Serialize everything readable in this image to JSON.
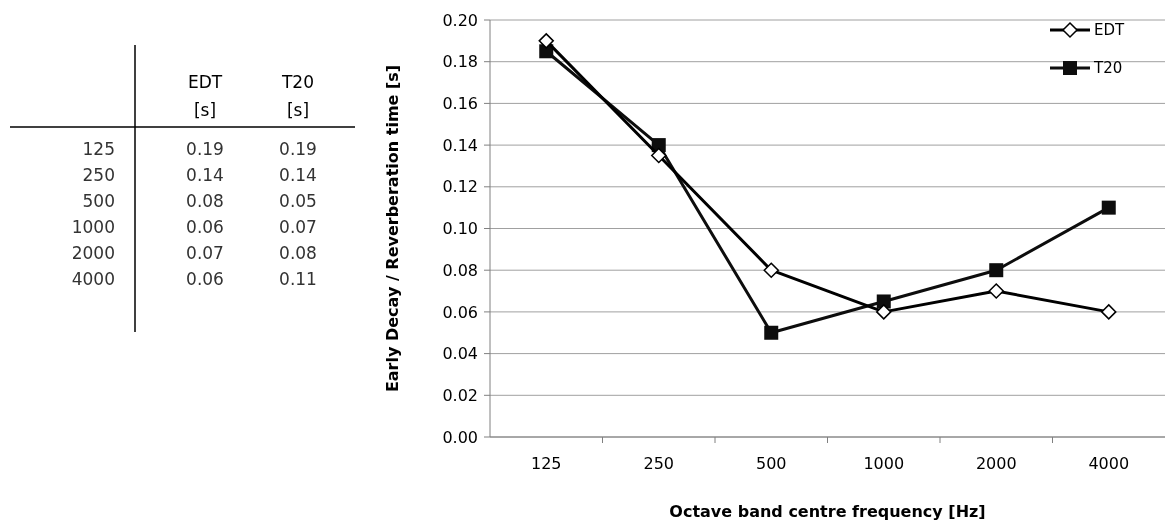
{
  "chart_data": [
    {
      "type": "heatmap",
      "categories": [
        "EDT [s]",
        "T20 [s]"
      ],
      "y_categories": [
        "125",
        "250",
        "500",
        "1000",
        "2000",
        "4000"
      ],
      "cells": [
        [
          0.19,
          0.19
        ],
        [
          0.14,
          0.14
        ],
        [
          0.08,
          0.05
        ],
        [
          0.06,
          0.07
        ],
        [
          0.07,
          0.08
        ],
        [
          0.06,
          0.11
        ]
      ],
      "data_labels": true
    },
    {
      "type": "line",
      "xlabel": "Octave band centre frequency [Hz]",
      "ylabel": "Early Decay / Reverberation time [s]",
      "categories": [
        "125",
        "250",
        "500",
        "1000",
        "2000",
        "4000"
      ],
      "series": [
        {
          "name": "EDT",
          "color": "#000000",
          "marker": "diamond",
          "values": [
            0.19,
            0.135,
            0.08,
            0.06,
            0.07,
            0.06
          ]
        },
        {
          "name": "T20",
          "color": "#0d0d0d",
          "marker": "square",
          "values": [
            0.185,
            0.14,
            0.05,
            0.065,
            0.08,
            0.11
          ]
        }
      ],
      "ylim": [
        0,
        0.2
      ],
      "yticks": [
        {
          "value": 0,
          "label": "0.00"
        },
        {
          "value": 0.02,
          "label": "0.02"
        },
        {
          "value": 0.04,
          "label": "0.04"
        },
        {
          "value": 0.06,
          "label": "0.06"
        },
        {
          "value": 0.08,
          "label": "0.08"
        },
        {
          "value": 0.1,
          "label": "0.10"
        },
        {
          "value": 0.12,
          "label": "0.12"
        },
        {
          "value": 0.14,
          "label": "0.14"
        },
        {
          "value": 0.16,
          "label": "0.16"
        },
        {
          "value": 0.18,
          "label": "0.18"
        },
        {
          "value": 0.2,
          "label": "0.20"
        }
      ],
      "grid": "y",
      "legend": "top right"
    }
  ]
}
